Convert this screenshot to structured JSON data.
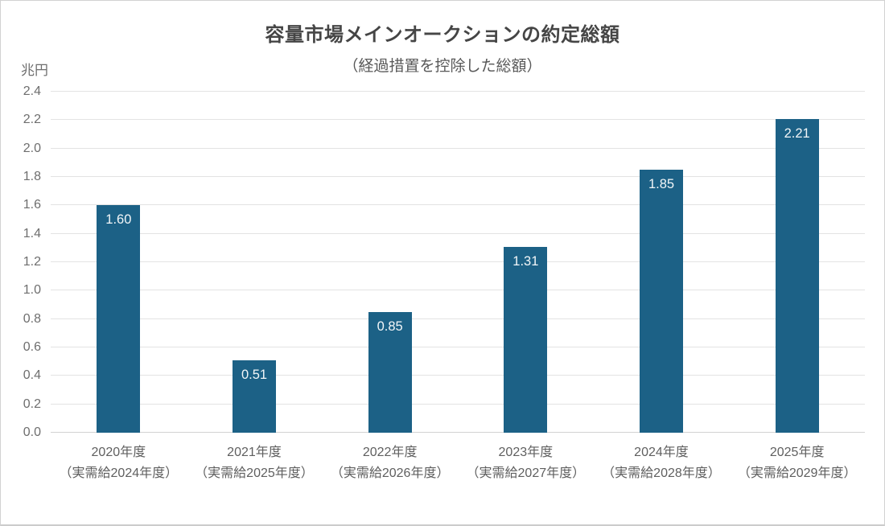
{
  "page": {
    "title": "容量市場メインオークションの約定総額",
    "subtitle": "（経過措置を控除した総額）",
    "unit_label": "兆円"
  },
  "colors": {
    "bar": "#1c6186",
    "value_label": "#f2f6f8",
    "grid": "#e3e3e3",
    "baseline": "#d2d2d2",
    "tick_text": "#6e6e6e",
    "category_text": "#5f5f5f"
  },
  "chart_data": {
    "type": "bar",
    "title": "容量市場メインオークションの約定総額",
    "subtitle": "（経過措置を控除した総額）",
    "ylabel": "兆円",
    "ylim": [
      0,
      2.4
    ],
    "ytick_step": 0.2,
    "yticks": [
      "0.0",
      "0.2",
      "0.4",
      "0.6",
      "0.8",
      "1.0",
      "1.2",
      "1.4",
      "1.6",
      "1.8",
      "2.0",
      "2.2",
      "2.4"
    ],
    "grid": true,
    "legend": "none",
    "categories": [
      {
        "line1": "2020年度",
        "line2": "（実需給2024年度）"
      },
      {
        "line1": "2021年度",
        "line2": "（実需給2025年度）"
      },
      {
        "line1": "2022年度",
        "line2": "（実需給2026年度）"
      },
      {
        "line1": "2023年度",
        "line2": "（実需給2027年度）"
      },
      {
        "line1": "2024年度",
        "line2": "（実需給2028年度）"
      },
      {
        "line1": "2025年度",
        "line2": "（実需給2029年度）"
      }
    ],
    "values": [
      1.6,
      0.51,
      0.85,
      1.31,
      1.85,
      2.21
    ],
    "value_labels": [
      "1.60",
      "0.51",
      "0.85",
      "1.31",
      "1.85",
      "2.21"
    ]
  }
}
